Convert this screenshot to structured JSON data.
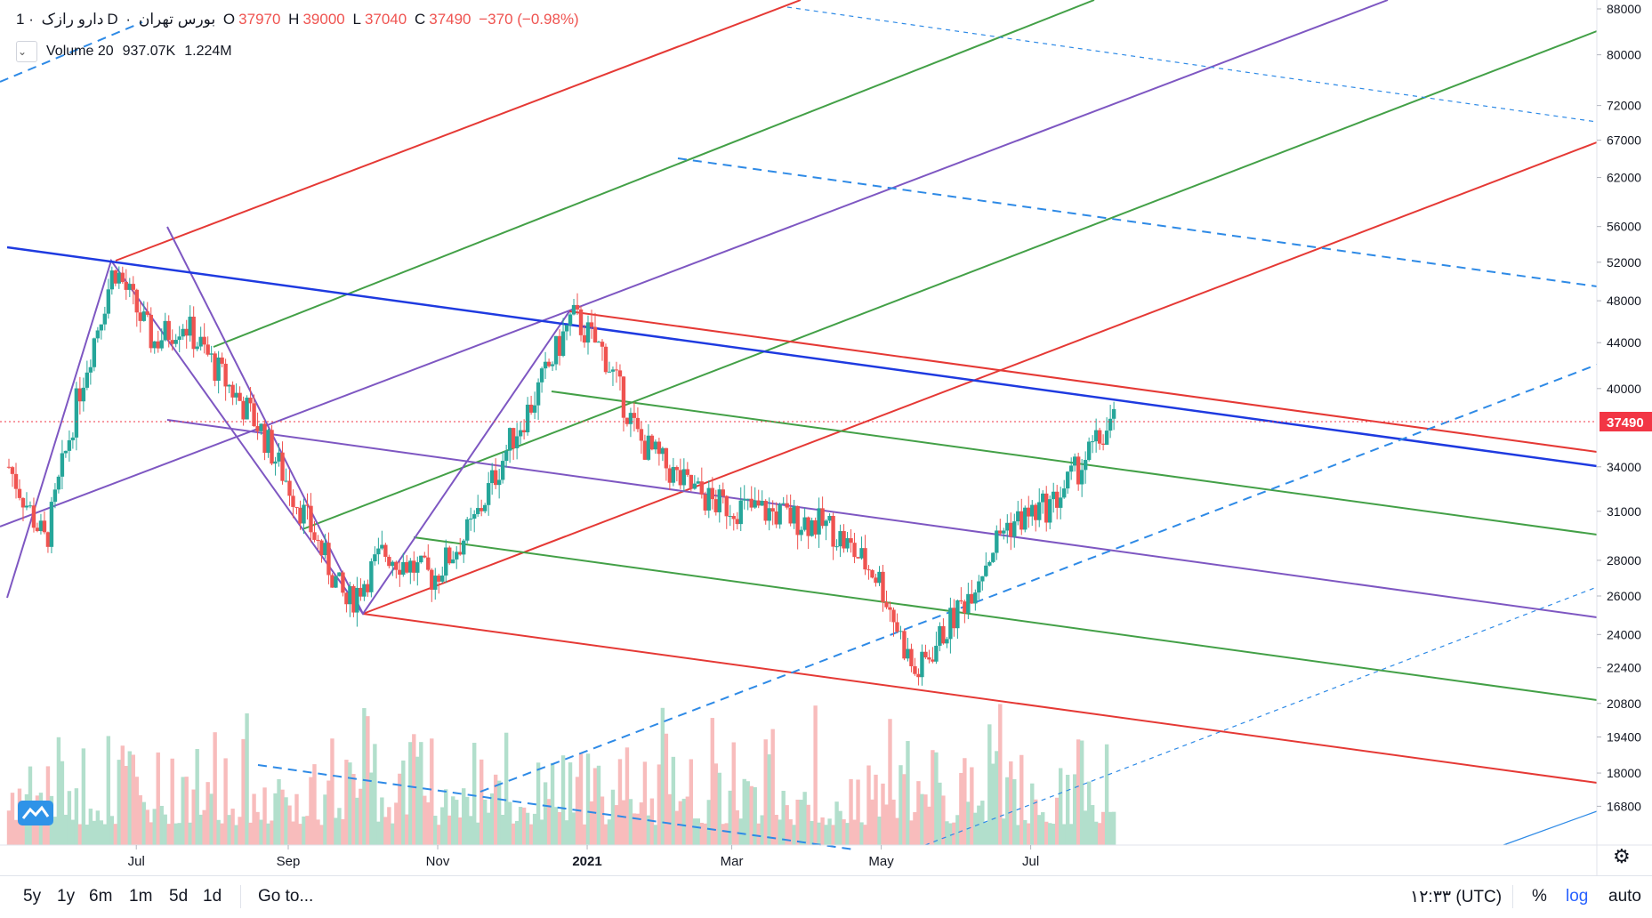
{
  "legend": {
    "symbol": "دارو رازک",
    "interval": "1D",
    "exchange": "بورس تهران",
    "o_label": "O",
    "o_value": "37970",
    "h_label": "H",
    "h_value": "39000",
    "l_label": "L",
    "l_value": "37040",
    "c_label": "C",
    "c_value": "37490",
    "change": "−370 (−0.98%)"
  },
  "volume_legend": {
    "name": "Volume 20",
    "value_a": "937.07K",
    "value_b": "1.224M"
  },
  "price_axis": {
    "ticks": [
      "88000",
      "80000",
      "72000",
      "67000",
      "62000",
      "56000",
      "52000",
      "48000",
      "44000",
      "40000",
      "37490",
      "34000",
      "31000",
      "28000",
      "26000",
      "24000",
      "22400",
      "20800",
      "19400",
      "18000",
      "16800"
    ],
    "last_price": "37490",
    "last_price_color": "#f23645"
  },
  "time_axis": {
    "labels": [
      "Jul",
      "Sep",
      "Nov",
      "2021",
      "Mar",
      "May",
      "Jul"
    ]
  },
  "bottom_bar": {
    "ranges": [
      "5y",
      "1y",
      "6m",
      "1m",
      "5d",
      "1d"
    ],
    "goto": "Go to...",
    "clock": "۱۲:۳۳ (UTC)",
    "percent": "%",
    "log": "log",
    "auto": "auto"
  },
  "colors": {
    "up": "#26a69a",
    "down": "#ef5350",
    "volume_up": "#b2dfcc",
    "volume_down": "#f8bcbc",
    "pitch_red": "#e53935",
    "pitch_green": "#43a047",
    "pitch_purple": "#7e57c2",
    "trend_blue": "#1e3ae0",
    "dashed_blue": "#2e8ae6"
  },
  "chart_data": {
    "type": "candlestick",
    "scale": "log",
    "ylim": [
      15500,
      88000
    ],
    "last_close": 37490,
    "anchors": [
      {
        "date": "2020-05-10",
        "close": 34000
      },
      {
        "date": "2020-05-25",
        "close": 29000
      },
      {
        "date": "2020-06-08",
        "close": 40000
      },
      {
        "date": "2020-06-22",
        "close": 51500
      },
      {
        "date": "2020-07-08",
        "close": 44000
      },
      {
        "date": "2020-07-20",
        "close": 46000
      },
      {
        "date": "2020-08-05",
        "close": 41000
      },
      {
        "date": "2020-08-20",
        "close": 37000
      },
      {
        "date": "2020-09-10",
        "close": 30000
      },
      {
        "date": "2020-09-25",
        "close": 25500
      },
      {
        "date": "2020-10-10",
        "close": 28500
      },
      {
        "date": "2020-10-30",
        "close": 27000
      },
      {
        "date": "2020-11-15",
        "close": 30000
      },
      {
        "date": "2020-12-01",
        "close": 36000
      },
      {
        "date": "2020-12-10",
        "close": 39000
      },
      {
        "date": "2020-12-26",
        "close": 46500
      },
      {
        "date": "2021-01-08",
        "close": 43000
      },
      {
        "date": "2021-01-22",
        "close": 36000
      },
      {
        "date": "2021-02-08",
        "close": 33000
      },
      {
        "date": "2021-02-22",
        "close": 31500
      },
      {
        "date": "2021-03-15",
        "close": 31000
      },
      {
        "date": "2021-04-10",
        "close": 30000
      },
      {
        "date": "2021-04-30",
        "close": 27000
      },
      {
        "date": "2021-05-15",
        "close": 22000
      },
      {
        "date": "2021-06-05",
        "close": 26000
      },
      {
        "date": "2021-06-20",
        "close": 30000
      },
      {
        "date": "2021-07-10",
        "close": 31500
      },
      {
        "date": "2021-07-25",
        "close": 35000
      },
      {
        "date": "2021-08-05",
        "close": 37490
      }
    ]
  }
}
